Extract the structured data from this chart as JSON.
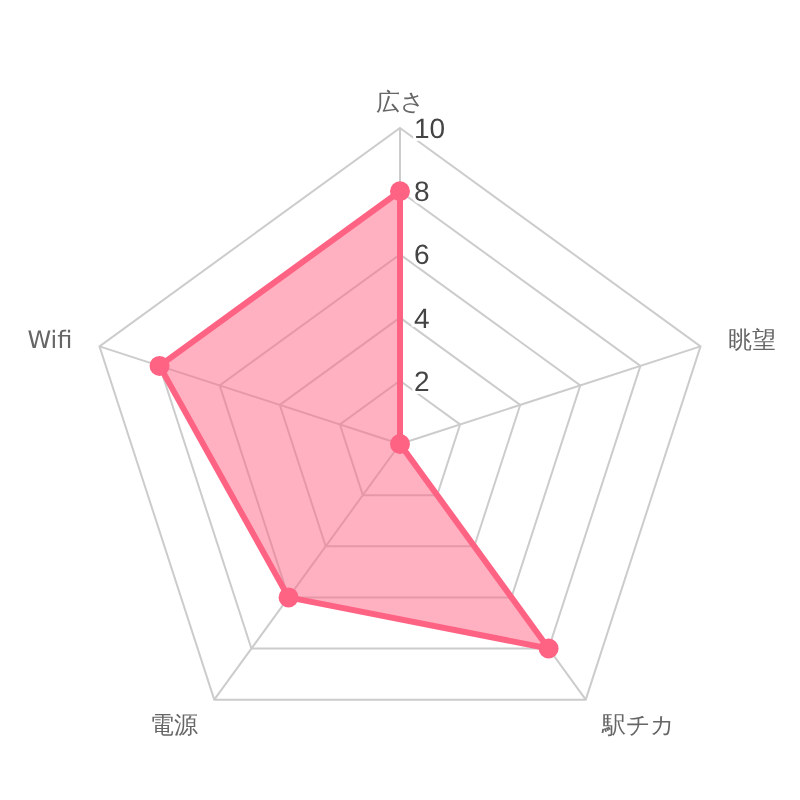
{
  "chart_data": {
    "type": "radar",
    "categories": [
      "広さ",
      "眺望",
      "駅チカ",
      "電源",
      "Wifi"
    ],
    "ylim": [
      0,
      10
    ],
    "yticks": [
      2,
      4,
      6,
      8,
      10
    ],
    "marker": "circle",
    "series": [
      {
        "color": "#ff6384",
        "values": [
          8,
          0,
          8,
          6,
          8
        ]
      }
    ]
  }
}
